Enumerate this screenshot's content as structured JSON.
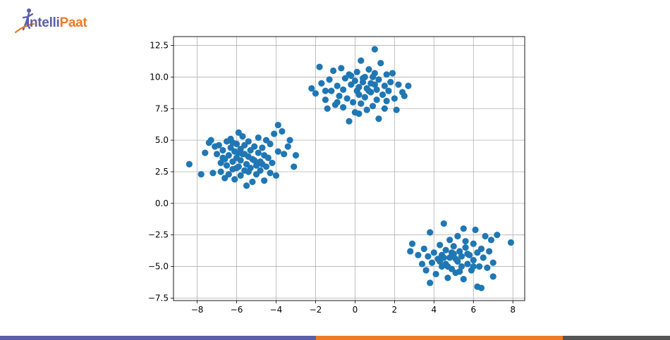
{
  "brand": {
    "name_part1": "Intelli",
    "name_part2": "Paat",
    "colors": {
      "purple": "#5b5fa8",
      "orange": "#f07a24",
      "gray": "#555555"
    }
  },
  "chart_data": {
    "type": "scatter",
    "title": "",
    "xlabel": "",
    "ylabel": "",
    "xlim": [
      -9.2,
      8.6
    ],
    "ylim": [
      -7.7,
      13.2
    ],
    "xticks": [
      -8,
      -6,
      -4,
      -2,
      0,
      2,
      4,
      6,
      8
    ],
    "yticks": [
      -7.5,
      -5.0,
      -2.5,
      0.0,
      2.5,
      5.0,
      7.5,
      10.0,
      12.5
    ],
    "xtick_labels": [
      "−8",
      "−6",
      "−4",
      "−2",
      "0",
      "2",
      "4",
      "6",
      "8"
    ],
    "ytick_labels": [
      "−7.5",
      "−5.0",
      "−2.5",
      "0.0",
      "2.5",
      "5.0",
      "7.5",
      "10.0",
      "12.5"
    ],
    "grid": true,
    "marker_color": "#1f77b4",
    "series": [
      {
        "points": [
          [
            -8.4,
            3.1
          ],
          [
            -7.8,
            2.3
          ],
          [
            -7.6,
            4.0
          ],
          [
            -7.4,
            4.8
          ],
          [
            -7.3,
            5.0
          ],
          [
            -7.2,
            2.4
          ],
          [
            -7.1,
            4.5
          ],
          [
            -7.0,
            3.9
          ],
          [
            -6.9,
            4.6
          ],
          [
            -6.8,
            3.2
          ],
          [
            -6.8,
            2.5
          ],
          [
            -6.7,
            4.2
          ],
          [
            -6.6,
            3.5
          ],
          [
            -6.6,
            2.0
          ],
          [
            -6.5,
            4.9
          ],
          [
            -6.5,
            3.0
          ],
          [
            -6.4,
            3.8
          ],
          [
            -6.4,
            2.3
          ],
          [
            -6.3,
            4.4
          ],
          [
            -6.3,
            5.1
          ],
          [
            -6.2,
            3.3
          ],
          [
            -6.2,
            2.7
          ],
          [
            -6.1,
            4.1
          ],
          [
            -6.1,
            1.9
          ],
          [
            -6.0,
            3.6
          ],
          [
            -6.0,
            4.7
          ],
          [
            -5.9,
            2.9
          ],
          [
            -5.9,
            5.6
          ],
          [
            -5.8,
            3.4
          ],
          [
            -5.8,
            4.3
          ],
          [
            -5.8,
            2.2
          ],
          [
            -5.7,
            3.9
          ],
          [
            -5.7,
            5.3
          ],
          [
            -5.6,
            2.6
          ],
          [
            -5.6,
            4.6
          ],
          [
            -5.5,
            3.1
          ],
          [
            -5.5,
            1.4
          ],
          [
            -5.4,
            3.7
          ],
          [
            -5.4,
            4.9
          ],
          [
            -5.3,
            2.8
          ],
          [
            -5.3,
            4.2
          ],
          [
            -5.2,
            3.5
          ],
          [
            -5.2,
            1.7
          ],
          [
            -5.1,
            4.5
          ],
          [
            -5.0,
            3.0
          ],
          [
            -5.0,
            2.3
          ],
          [
            -4.9,
            4.0
          ],
          [
            -4.9,
            5.2
          ],
          [
            -4.8,
            3.3
          ],
          [
            -4.8,
            2.6
          ],
          [
            -4.7,
            4.4
          ],
          [
            -4.6,
            3.8
          ],
          [
            -4.6,
            1.8
          ],
          [
            -4.5,
            5.0
          ],
          [
            -4.5,
            2.9
          ],
          [
            -4.4,
            3.6
          ],
          [
            -4.3,
            4.7
          ],
          [
            -4.3,
            2.4
          ],
          [
            -4.2,
            3.2
          ],
          [
            -4.1,
            5.5
          ],
          [
            -4.0,
            2.2
          ],
          [
            -3.9,
            6.2
          ],
          [
            -3.9,
            4.1
          ],
          [
            -3.7,
            5.7
          ],
          [
            -3.6,
            3.9
          ],
          [
            -3.4,
            4.5
          ],
          [
            -3.3,
            5.0
          ],
          [
            -3.1,
            2.9
          ],
          [
            -3.0,
            3.8
          ],
          [
            -6.7,
            3.6
          ],
          [
            -6.0,
            2.8
          ],
          [
            -5.6,
            3.9
          ],
          [
            -5.9,
            4.0
          ],
          [
            -5.4,
            2.5
          ],
          [
            -6.2,
            4.8
          ],
          [
            -5.1,
            3.4
          ],
          [
            -4.7,
            3.1
          ]
        ]
      },
      {
        "points": [
          [
            -2.2,
            9.1
          ],
          [
            -2.0,
            8.7
          ],
          [
            -1.8,
            10.8
          ],
          [
            -1.7,
            9.5
          ],
          [
            -1.5,
            8.2
          ],
          [
            -1.4,
            7.5
          ],
          [
            -1.3,
            9.8
          ],
          [
            -1.2,
            8.9
          ],
          [
            -1.1,
            10.5
          ],
          [
            -1.0,
            7.8
          ],
          [
            -0.9,
            9.3
          ],
          [
            -0.8,
            8.5
          ],
          [
            -0.7,
            10.7
          ],
          [
            -0.6,
            9.0
          ],
          [
            -0.6,
            7.6
          ],
          [
            -0.5,
            9.9
          ],
          [
            -0.4,
            8.3
          ],
          [
            -0.3,
            10.2
          ],
          [
            -0.3,
            6.5
          ],
          [
            -0.2,
            9.4
          ],
          [
            -0.1,
            8.0
          ],
          [
            0.0,
            9.7
          ],
          [
            0.0,
            7.2
          ],
          [
            0.1,
            10.4
          ],
          [
            0.2,
            8.6
          ],
          [
            0.2,
            9.2
          ],
          [
            0.3,
            11.3
          ],
          [
            0.3,
            7.9
          ],
          [
            0.4,
            9.6
          ],
          [
            0.5,
            8.4
          ],
          [
            0.5,
            10.0
          ],
          [
            0.6,
            7.4
          ],
          [
            0.6,
            9.1
          ],
          [
            0.7,
            10.6
          ],
          [
            0.8,
            8.8
          ],
          [
            0.8,
            9.5
          ],
          [
            0.9,
            7.7
          ],
          [
            1.0,
            12.2
          ],
          [
            1.0,
            10.3
          ],
          [
            1.1,
            8.2
          ],
          [
            1.1,
            9.0
          ],
          [
            1.2,
            6.7
          ],
          [
            1.2,
            9.8
          ],
          [
            1.3,
            11.1
          ],
          [
            1.4,
            8.6
          ],
          [
            1.5,
            9.3
          ],
          [
            1.5,
            7.5
          ],
          [
            1.6,
            10.2
          ],
          [
            1.7,
            8.9
          ],
          [
            1.8,
            9.6
          ],
          [
            1.9,
            10.3
          ],
          [
            2.0,
            8.3
          ],
          [
            2.1,
            7.4
          ],
          [
            2.2,
            9.4
          ],
          [
            2.5,
            8.5
          ],
          [
            2.7,
            9.3
          ],
          [
            2.4,
            8.8
          ],
          [
            0.4,
            9.9
          ],
          [
            0.7,
            8.9
          ],
          [
            -0.2,
            10.1
          ],
          [
            1.0,
            9.4
          ],
          [
            0.1,
            8.9
          ],
          [
            0.9,
            10.0
          ],
          [
            -1.5,
            8.9
          ],
          [
            0.2,
            7.1
          ],
          [
            1.6,
            8.1
          ],
          [
            -0.9,
            8.0
          ]
        ]
      },
      {
        "points": [
          [
            2.8,
            -3.8
          ],
          [
            2.9,
            -3.2
          ],
          [
            3.2,
            -4.1
          ],
          [
            3.4,
            -4.8
          ],
          [
            3.5,
            -3.6
          ],
          [
            3.6,
            -5.3
          ],
          [
            3.7,
            -4.2
          ],
          [
            3.8,
            -2.3
          ],
          [
            3.8,
            -6.3
          ],
          [
            3.9,
            -4.7
          ],
          [
            4.0,
            -3.9
          ],
          [
            4.1,
            -5.6
          ],
          [
            4.2,
            -4.4
          ],
          [
            4.3,
            -3.3
          ],
          [
            4.4,
            -5.0
          ],
          [
            4.4,
            -4.1
          ],
          [
            4.5,
            -1.6
          ],
          [
            4.6,
            -4.8
          ],
          [
            4.6,
            -3.7
          ],
          [
            4.7,
            -5.9
          ],
          [
            4.8,
            -4.3
          ],
          [
            4.8,
            -2.9
          ],
          [
            4.9,
            -5.2
          ],
          [
            5.0,
            -4.0
          ],
          [
            5.0,
            -3.4
          ],
          [
            5.1,
            -5.5
          ],
          [
            5.2,
            -4.6
          ],
          [
            5.2,
            -2.6
          ],
          [
            5.3,
            -3.8
          ],
          [
            5.4,
            -5.0
          ],
          [
            5.4,
            -4.2
          ],
          [
            5.5,
            -2.0
          ],
          [
            5.5,
            -6.0
          ],
          [
            5.6,
            -3.5
          ],
          [
            5.7,
            -4.8
          ],
          [
            5.8,
            -4.1
          ],
          [
            5.9,
            -5.3
          ],
          [
            6.0,
            -3.2
          ],
          [
            6.0,
            -4.5
          ],
          [
            6.1,
            -2.1
          ],
          [
            6.2,
            -3.9
          ],
          [
            6.2,
            -6.6
          ],
          [
            6.3,
            -5.0
          ],
          [
            6.4,
            -3.6
          ],
          [
            6.4,
            -6.7
          ],
          [
            6.5,
            -4.3
          ],
          [
            6.6,
            -2.6
          ],
          [
            6.7,
            -5.1
          ],
          [
            6.8,
            -3.8
          ],
          [
            6.9,
            -2.9
          ],
          [
            7.0,
            -4.7
          ],
          [
            7.0,
            -5.8
          ],
          [
            7.2,
            -2.5
          ],
          [
            7.9,
            -3.1
          ],
          [
            5.1,
            -4.4
          ],
          [
            4.9,
            -3.9
          ],
          [
            5.7,
            -4.0
          ],
          [
            4.3,
            -4.6
          ],
          [
            5.3,
            -5.4
          ],
          [
            6.0,
            -5.0
          ],
          [
            4.7,
            -5.0
          ],
          [
            5.6,
            -3.0
          ],
          [
            4.5,
            -4.3
          ]
        ]
      }
    ]
  }
}
